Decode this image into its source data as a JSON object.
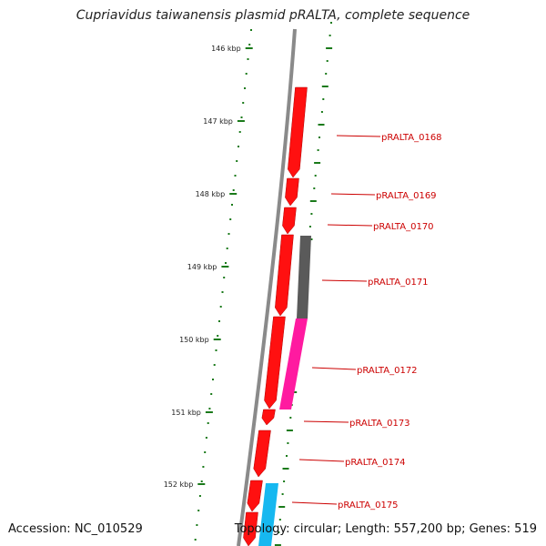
{
  "title": "Cupriavidus taiwanensis plasmid pRALTA, complete sequence",
  "accession_line": "Accession: NC_010529",
  "summary_line": "Topology: circular; Length: 557,200 bp; Genes: 519",
  "colors": {
    "backbone": "#8a8a8a",
    "gene_red": "#ff1010",
    "gene_red_dark": "#b00000",
    "gene_gray": "#5a5a5a",
    "gene_pink": "#ff1aa0",
    "gene_cyan": "#16b8f0",
    "tick_green": "#1a7a1a",
    "gene_label": "#cc0000",
    "kbp_label": "#222222"
  },
  "kbp_ticks": [
    "146 kbp",
    "147 kbp",
    "148 kbp",
    "149 kbp",
    "150 kbp",
    "151 kbp",
    "152 kbp"
  ],
  "gene_labels": [
    "pRALTA_0168",
    "pRALTA_0169",
    "pRALTA_0170",
    "pRALTA_0171",
    "pRALTA_0172",
    "pRALTA_0173",
    "pRALTA_0174",
    "pRALTA_0175"
  ]
}
